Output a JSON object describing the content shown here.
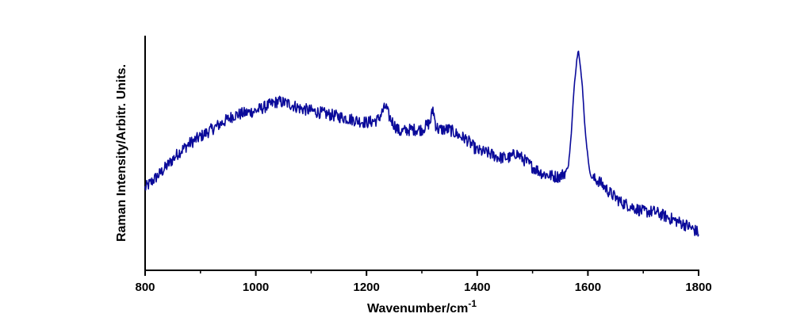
{
  "chart_data": {
    "type": "line",
    "title": "",
    "xlabel": "Wavenumber/cm",
    "xlabel_superscript": "-1",
    "ylabel": "Raman Intensity/Arbitr. Units.",
    "xlim": [
      800,
      1800
    ],
    "ylim": [
      0,
      100
    ],
    "x_ticks": [
      800,
      1000,
      1200,
      1400,
      1600,
      1800
    ],
    "x_tick_labels": [
      "800",
      "1000",
      "1200",
      "1400",
      "1600",
      "1800"
    ],
    "y_tick_labels_shown": false,
    "grid": false,
    "legend": "none",
    "series": [
      {
        "color": "#0a0a9a",
        "x": [
          800,
          830,
          860,
          880,
          900,
          920,
          940,
          960,
          980,
          1000,
          1020,
          1040,
          1060,
          1080,
          1100,
          1120,
          1140,
          1160,
          1180,
          1200,
          1220,
          1235,
          1240,
          1250,
          1260,
          1280,
          1300,
          1315,
          1320,
          1325,
          1330,
          1350,
          1370,
          1380,
          1400,
          1420,
          1440,
          1460,
          1470,
          1480,
          1500,
          1520,
          1540,
          1550,
          1560,
          1565,
          1570,
          1575,
          1580,
          1583,
          1586,
          1590,
          1595,
          1600,
          1605,
          1610,
          1620,
          1640,
          1660,
          1680,
          1700,
          1720,
          1740,
          1760,
          1780,
          1800
        ],
        "y": [
          35,
          42,
          50,
          54,
          57,
          60,
          63,
          66,
          67,
          68,
          70,
          72,
          71,
          69,
          68,
          67,
          66,
          65,
          64,
          63,
          64,
          70,
          66,
          62,
          59,
          60,
          60,
          63,
          69,
          62,
          60,
          60,
          57,
          56,
          51,
          50,
          48,
          48,
          50,
          48,
          44,
          41,
          40,
          40,
          42,
          45,
          58,
          78,
          90,
          94,
          88,
          78,
          60,
          48,
          40,
          39,
          38,
          33,
          29,
          27,
          25,
          25,
          23,
          21,
          19,
          16
        ]
      }
    ]
  }
}
